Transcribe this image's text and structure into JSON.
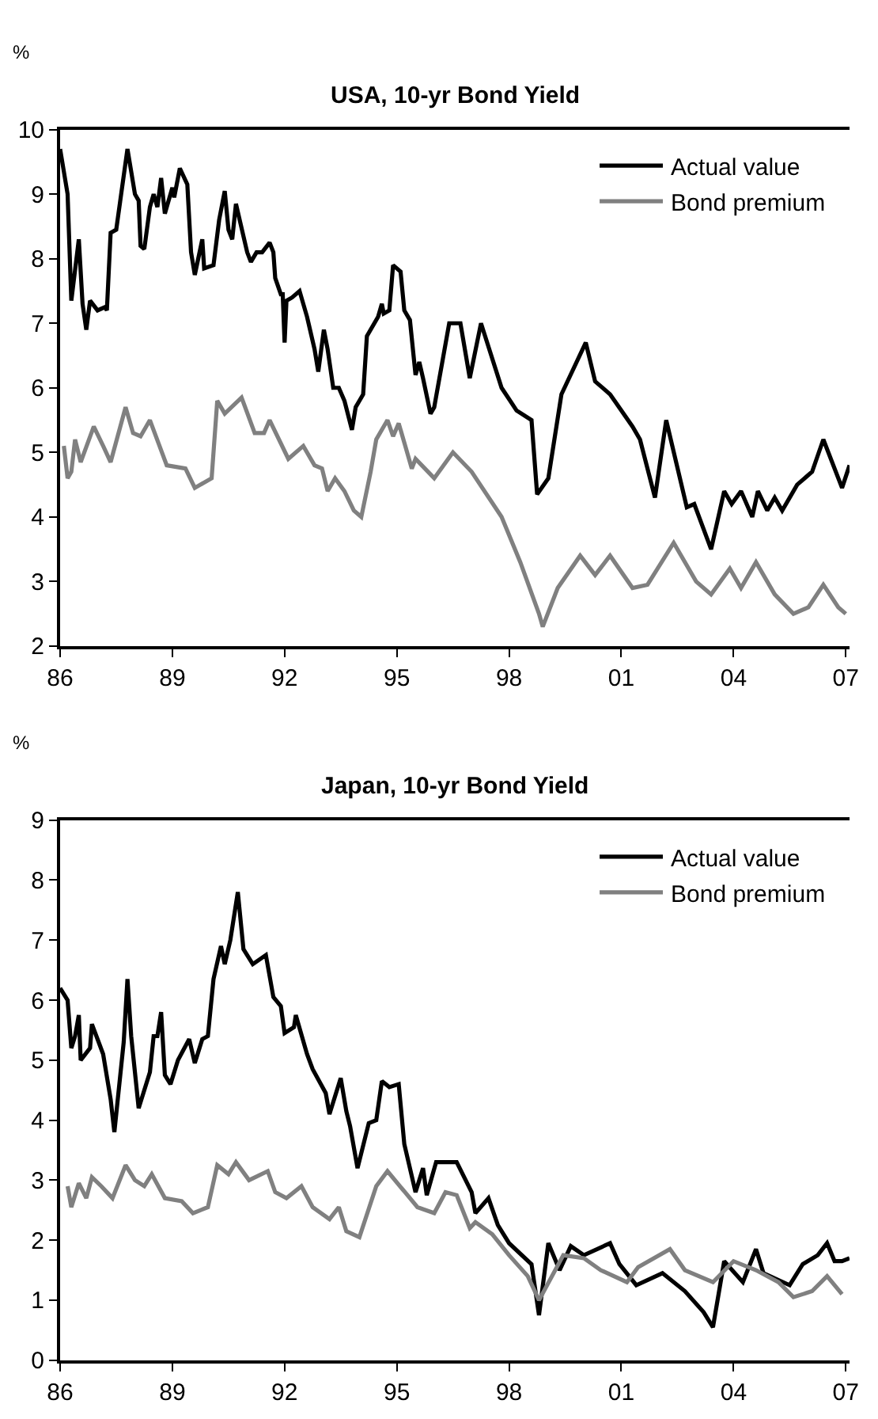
{
  "chart_data": [
    {
      "type": "line",
      "title": "USA, 10-yr Bond Yield",
      "ylabel": "%",
      "legend": "top right",
      "xlim": [
        1986,
        2007.1
      ],
      "xticks": [
        {
          "value": 1986,
          "label": "86"
        },
        {
          "value": 1989,
          "label": "89"
        },
        {
          "value": 1992,
          "label": "92"
        },
        {
          "value": 1995,
          "label": "95"
        },
        {
          "value": 1998,
          "label": "98"
        },
        {
          "value": 2001,
          "label": "01"
        },
        {
          "value": 2004,
          "label": "04"
        },
        {
          "value": 2007,
          "label": "07"
        }
      ],
      "ylim": [
        2,
        10
      ],
      "yticks": [
        2,
        3,
        4,
        5,
        6,
        7,
        8,
        9,
        10
      ],
      "series": [
        {
          "name": "Actual value",
          "color": "#000000",
          "x": [
            1986.0,
            1986.2,
            1986.3,
            1986.5,
            1986.6,
            1986.7,
            1986.8,
            1987.0,
            1987.2,
            1987.25,
            1987.35,
            1987.5,
            1987.8,
            1988.0,
            1988.1,
            1988.15,
            1988.25,
            1988.4,
            1988.5,
            1988.6,
            1988.7,
            1988.8,
            1989.0,
            1989.05,
            1989.2,
            1989.4,
            1989.5,
            1989.6,
            1989.8,
            1989.85,
            1990.1,
            1990.25,
            1990.4,
            1990.5,
            1990.6,
            1990.7,
            1990.8,
            1991.0,
            1991.1,
            1991.25,
            1991.4,
            1991.6,
            1991.7,
            1991.75,
            1991.9,
            1991.95,
            1992.0,
            1992.05,
            1992.2,
            1992.4,
            1992.6,
            1992.8,
            1992.9,
            1993.05,
            1993.15,
            1993.3,
            1993.45,
            1993.6,
            1993.8,
            1993.9,
            1994.1,
            1994.2,
            1994.5,
            1994.6,
            1994.65,
            1994.8,
            1994.9,
            1995.1,
            1995.2,
            1995.35,
            1995.5,
            1995.6,
            1995.7,
            1995.9,
            1996.0,
            1996.4,
            1996.7,
            1996.95,
            1997.25,
            1997.8,
            1998.2,
            1998.6,
            1998.75,
            1999.05,
            1999.4,
            2000.05,
            2000.3,
            2000.7,
            2001.3,
            2001.5,
            2001.9,
            2002.2,
            2002.75,
            2002.95,
            2003.4,
            2003.75,
            2003.95,
            2004.2,
            2004.5,
            2004.65,
            2004.9,
            2005.1,
            2005.3,
            2005.7,
            2005.9,
            2006.1,
            2006.4,
            2006.9,
            2007.1
          ],
          "values": [
            9.7,
            9.0,
            7.35,
            8.3,
            7.3,
            6.9,
            7.35,
            7.2,
            7.25,
            7.2,
            8.4,
            8.45,
            9.7,
            9.0,
            8.9,
            8.2,
            8.15,
            8.8,
            9.0,
            8.8,
            9.25,
            8.7,
            9.1,
            8.95,
            9.4,
            9.15,
            8.1,
            7.75,
            8.3,
            7.85,
            7.9,
            8.6,
            9.05,
            8.45,
            8.3,
            8.85,
            8.6,
            8.1,
            7.95,
            8.1,
            8.1,
            8.25,
            8.1,
            7.7,
            7.45,
            7.45,
            6.7,
            7.35,
            7.4,
            7.5,
            7.1,
            6.6,
            6.25,
            6.9,
            6.6,
            6.0,
            6.0,
            5.8,
            5.35,
            5.7,
            5.9,
            6.8,
            7.1,
            7.3,
            7.15,
            7.2,
            7.9,
            7.8,
            7.2,
            7.05,
            6.2,
            6.4,
            6.15,
            5.6,
            5.7,
            7.0,
            7.0,
            6.15,
            7.0,
            6.0,
            5.65,
            5.5,
            4.35,
            4.6,
            5.9,
            6.7,
            6.1,
            5.9,
            5.4,
            5.2,
            4.3,
            5.5,
            4.15,
            4.2,
            3.5,
            4.4,
            4.2,
            4.4,
            4.0,
            4.4,
            4.1,
            4.3,
            4.1,
            4.5,
            4.6,
            4.7,
            5.2,
            4.45,
            4.8
          ]
        },
        {
          "name": "Bond premium",
          "color": "#808080",
          "x": [
            1986.1,
            1986.2,
            1986.3,
            1986.4,
            1986.55,
            1986.9,
            1987.15,
            1987.35,
            1987.75,
            1987.95,
            1988.15,
            1988.4,
            1988.85,
            1989.35,
            1989.6,
            1990.05,
            1990.2,
            1990.4,
            1990.85,
            1991.2,
            1991.45,
            1991.6,
            1992.1,
            1992.5,
            1992.8,
            1993.0,
            1993.15,
            1993.35,
            1993.6,
            1993.85,
            1994.05,
            1994.3,
            1994.45,
            1994.75,
            1994.9,
            1995.05,
            1995.4,
            1995.5,
            1996.0,
            1996.5,
            1997.0,
            1997.8,
            1998.3,
            1998.8,
            1998.9,
            1999.3,
            1999.9,
            2000.3,
            2000.7,
            2001.3,
            2001.7,
            2002.4,
            2003.0,
            2003.4,
            2003.9,
            2004.2,
            2004.6,
            2005.1,
            2005.6,
            2006.0,
            2006.4,
            2006.8,
            2007.0
          ],
          "values": [
            5.1,
            4.6,
            4.7,
            5.2,
            4.85,
            5.4,
            5.1,
            4.85,
            5.7,
            5.3,
            5.25,
            5.5,
            4.8,
            4.75,
            4.45,
            4.6,
            5.8,
            5.6,
            5.85,
            5.3,
            5.3,
            5.5,
            4.9,
            5.1,
            4.8,
            4.75,
            4.4,
            4.6,
            4.4,
            4.1,
            4.0,
            4.7,
            5.2,
            5.5,
            5.25,
            5.45,
            4.75,
            4.9,
            4.6,
            5.0,
            4.7,
            4.0,
            3.3,
            2.5,
            2.3,
            2.9,
            3.4,
            3.1,
            3.4,
            2.9,
            2.95,
            3.6,
            3.0,
            2.8,
            3.2,
            2.9,
            3.3,
            2.8,
            2.5,
            2.6,
            2.95,
            2.6,
            2.5
          ]
        }
      ]
    },
    {
      "type": "line",
      "title": "Japan, 10-yr Bond Yield",
      "ylabel": "%",
      "legend": "top right",
      "xlim": [
        1986,
        2007.1
      ],
      "xticks": [
        {
          "value": 1986,
          "label": "86"
        },
        {
          "value": 1989,
          "label": "89"
        },
        {
          "value": 1992,
          "label": "92"
        },
        {
          "value": 1995,
          "label": "95"
        },
        {
          "value": 1998,
          "label": "98"
        },
        {
          "value": 2001,
          "label": "01"
        },
        {
          "value": 2004,
          "label": "04"
        },
        {
          "value": 2007,
          "label": "07"
        }
      ],
      "ylim": [
        0,
        9
      ],
      "yticks": [
        0,
        1,
        2,
        3,
        4,
        5,
        6,
        7,
        8,
        9
      ],
      "series": [
        {
          "name": "Actual value",
          "color": "#000000",
          "x": [
            1986.0,
            1986.2,
            1986.3,
            1986.4,
            1986.5,
            1986.55,
            1986.8,
            1986.85,
            1987.0,
            1987.15,
            1987.35,
            1987.45,
            1987.7,
            1987.8,
            1987.9,
            1988.1,
            1988.4,
            1988.5,
            1988.6,
            1988.7,
            1988.8,
            1988.95,
            1989.15,
            1989.45,
            1989.6,
            1989.8,
            1989.95,
            1990.1,
            1990.3,
            1990.4,
            1990.55,
            1990.75,
            1990.9,
            1991.15,
            1991.5,
            1991.7,
            1991.9,
            1992.0,
            1992.25,
            1992.3,
            1992.6,
            1992.75,
            1993.1,
            1993.2,
            1993.5,
            1993.65,
            1993.75,
            1993.95,
            1994.25,
            1994.45,
            1994.6,
            1994.8,
            1995.05,
            1995.2,
            1995.5,
            1995.7,
            1995.8,
            1996.05,
            1996.3,
            1996.6,
            1997.0,
            1997.1,
            1997.45,
            1997.7,
            1998.0,
            1998.6,
            1998.8,
            1999.05,
            1999.35,
            1999.65,
            2000.0,
            2000.7,
            2000.95,
            2001.4,
            2002.1,
            2002.7,
            2003.2,
            2003.45,
            2003.75,
            2004.25,
            2004.6,
            2004.8,
            2005.5,
            2005.85,
            2006.25,
            2006.5,
            2006.7,
            2006.9,
            2007.1
          ],
          "values": [
            6.2,
            6.0,
            5.2,
            5.4,
            5.75,
            5.0,
            5.2,
            5.6,
            5.35,
            5.1,
            4.35,
            3.8,
            5.3,
            6.35,
            5.4,
            4.2,
            4.8,
            5.4,
            5.4,
            5.8,
            4.75,
            4.6,
            5.0,
            5.35,
            4.95,
            5.35,
            5.4,
            6.35,
            6.9,
            6.6,
            7.0,
            7.8,
            6.85,
            6.6,
            6.75,
            6.05,
            5.9,
            5.45,
            5.55,
            5.75,
            5.1,
            4.85,
            4.45,
            4.1,
            4.7,
            4.15,
            3.9,
            3.2,
            3.95,
            4.0,
            4.65,
            4.55,
            4.6,
            3.6,
            2.8,
            3.2,
            2.75,
            3.3,
            3.3,
            3.3,
            2.8,
            2.45,
            2.7,
            2.25,
            1.95,
            1.6,
            0.75,
            1.95,
            1.5,
            1.9,
            1.75,
            1.95,
            1.6,
            1.25,
            1.45,
            1.15,
            0.8,
            0.55,
            1.65,
            1.3,
            1.85,
            1.45,
            1.25,
            1.6,
            1.75,
            1.95,
            1.65,
            1.65,
            1.7
          ]
        },
        {
          "name": "Bond premium",
          "color": "#808080",
          "x": [
            1986.2,
            1986.3,
            1986.5,
            1986.7,
            1986.85,
            1987.1,
            1987.4,
            1987.75,
            1988.0,
            1988.25,
            1988.45,
            1988.8,
            1989.25,
            1989.55,
            1989.95,
            1990.2,
            1990.5,
            1990.7,
            1991.05,
            1991.55,
            1991.75,
            1992.05,
            1992.45,
            1992.75,
            1993.2,
            1993.45,
            1993.65,
            1994.0,
            1994.45,
            1994.75,
            1995.15,
            1995.55,
            1996.0,
            1996.3,
            1996.6,
            1996.95,
            1997.1,
            1997.55,
            1998.0,
            1998.5,
            1998.8,
            1999.45,
            2000.0,
            2000.45,
            2001.15,
            2001.45,
            2002.3,
            2002.7,
            2003.45,
            2004.0,
            2004.6,
            2005.2,
            2005.6,
            2006.1,
            2006.5,
            2006.9
          ],
          "values": [
            2.9,
            2.55,
            2.95,
            2.7,
            3.05,
            2.9,
            2.7,
            3.25,
            3.0,
            2.9,
            3.1,
            2.7,
            2.65,
            2.45,
            2.55,
            3.25,
            3.1,
            3.3,
            3.0,
            3.15,
            2.8,
            2.7,
            2.9,
            2.55,
            2.35,
            2.55,
            2.15,
            2.05,
            2.9,
            3.15,
            2.85,
            2.55,
            2.45,
            2.8,
            2.75,
            2.2,
            2.3,
            2.1,
            1.75,
            1.4,
            1.0,
            1.75,
            1.7,
            1.5,
            1.3,
            1.55,
            1.85,
            1.5,
            1.3,
            1.65,
            1.5,
            1.3,
            1.05,
            1.15,
            1.4,
            1.1
          ]
        }
      ]
    }
  ]
}
